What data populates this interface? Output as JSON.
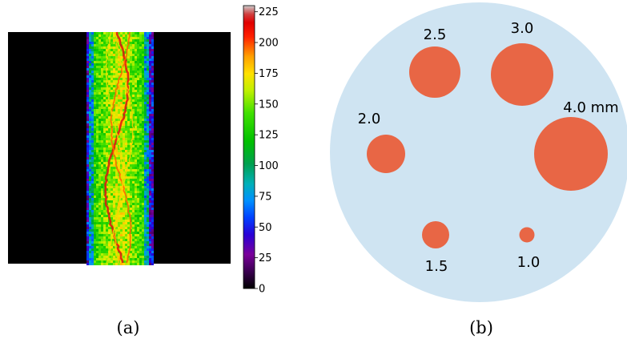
{
  "panel_a": {
    "caption": "(a)",
    "colorbar": {
      "ticks": [
        "0",
        "25",
        "50",
        "75",
        "100",
        "125",
        "150",
        "175",
        "200",
        "225"
      ],
      "tick_values": [
        0,
        25,
        50,
        75,
        100,
        125,
        150,
        175,
        200,
        225
      ],
      "range": [
        0,
        230
      ],
      "colormap": "spectral"
    },
    "image": {
      "background_color": "#000000",
      "description_values": "vertical band with noisy intensity, bright wavy ridges"
    }
  },
  "panel_b": {
    "caption": "(b)",
    "phantom_color": "#cfe4f2",
    "hole_color": "#e86645",
    "holes": [
      {
        "label": "2.5",
        "diameter_mm": 2.5
      },
      {
        "label": "3.0",
        "diameter_mm": 3.0
      },
      {
        "label": "4.0 mm",
        "diameter_mm": 4.0
      },
      {
        "label": "2.0",
        "diameter_mm": 2.0
      },
      {
        "label": "1.5",
        "diameter_mm": 1.5
      },
      {
        "label": "1.0",
        "diameter_mm": 1.0
      }
    ]
  }
}
